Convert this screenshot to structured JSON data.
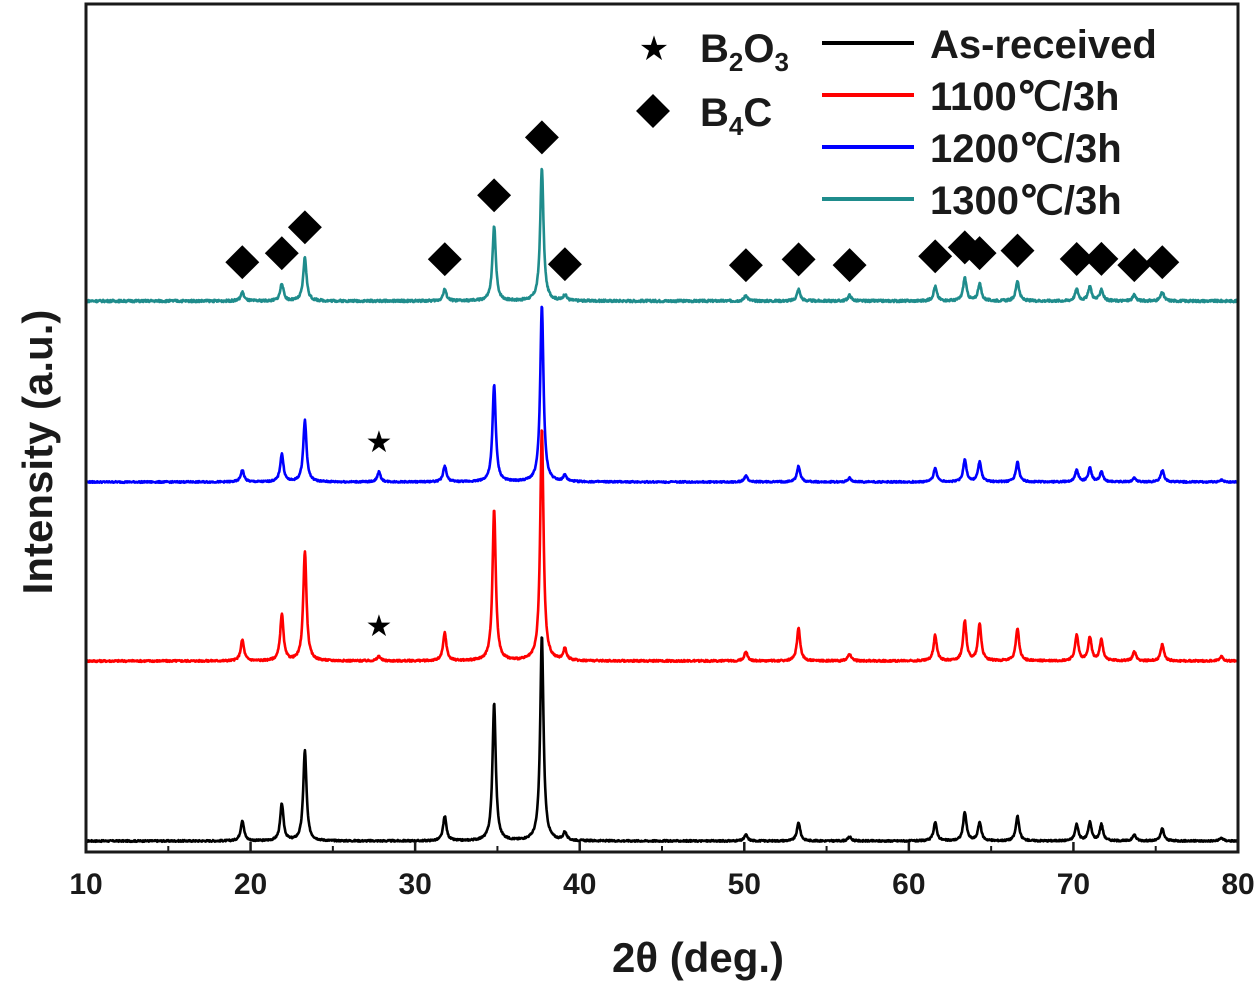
{
  "chart_data": {
    "type": "line",
    "title": "",
    "xlabel": "2θ (deg.)",
    "ylabel": "Intensity (a.u.)",
    "xlim": [
      10,
      80
    ],
    "xticks": [
      10,
      20,
      30,
      40,
      50,
      60,
      70,
      80
    ],
    "yticks_shown": false,
    "legend_placement": "top-right",
    "markers": [
      {
        "name": "B2O3",
        "symbol": "★",
        "label": {
          "base": "B",
          "sub1": "2",
          "mid": "O",
          "sub2": "3"
        }
      },
      {
        "name": "B4C",
        "symbol": "◆",
        "label": {
          "base": "B",
          "sub1": "4",
          "mid": "C",
          "sub2": ""
        }
      }
    ],
    "series": [
      {
        "name": "As-received",
        "color": "#000000",
        "offset": 0,
        "peaks": [
          [
            19.5,
            0.1
          ],
          [
            21.9,
            0.18
          ],
          [
            23.3,
            0.44
          ],
          [
            31.8,
            0.12
          ],
          [
            34.8,
            0.67
          ],
          [
            37.7,
            1.0
          ],
          [
            39.1,
            0.04
          ],
          [
            50.1,
            0.03
          ],
          [
            53.3,
            0.09
          ],
          [
            56.4,
            0.02
          ],
          [
            61.6,
            0.09
          ],
          [
            63.4,
            0.14
          ],
          [
            64.3,
            0.09
          ],
          [
            66.6,
            0.12
          ],
          [
            70.2,
            0.08
          ],
          [
            71.0,
            0.09
          ],
          [
            71.7,
            0.08
          ],
          [
            73.7,
            0.03
          ],
          [
            75.4,
            0.06
          ],
          [
            79.0,
            0.015
          ]
        ]
      },
      {
        "name": "1100℃/3h",
        "color": "#ff0000",
        "offset": 1,
        "peaks": [
          [
            19.5,
            0.09
          ],
          [
            21.9,
            0.2
          ],
          [
            23.3,
            0.47
          ],
          [
            27.8,
            0.02
          ],
          [
            31.8,
            0.12
          ],
          [
            34.8,
            0.65
          ],
          [
            37.7,
            1.0
          ],
          [
            39.1,
            0.05
          ],
          [
            50.1,
            0.04
          ],
          [
            53.3,
            0.14
          ],
          [
            56.4,
            0.03
          ],
          [
            61.6,
            0.11
          ],
          [
            63.4,
            0.17
          ],
          [
            64.3,
            0.16
          ],
          [
            66.6,
            0.14
          ],
          [
            70.2,
            0.11
          ],
          [
            71.0,
            0.1
          ],
          [
            71.7,
            0.09
          ],
          [
            73.7,
            0.04
          ],
          [
            75.4,
            0.07
          ],
          [
            79.0,
            0.02
          ]
        ]
      },
      {
        "name": "1200℃/3h",
        "color": "#0000ff",
        "offset": 2,
        "peaks": [
          [
            19.5,
            0.06
          ],
          [
            21.9,
            0.14
          ],
          [
            23.3,
            0.31
          ],
          [
            27.8,
            0.05
          ],
          [
            31.8,
            0.08
          ],
          [
            34.8,
            0.49
          ],
          [
            37.7,
            0.89
          ],
          [
            39.1,
            0.03
          ],
          [
            50.1,
            0.03
          ],
          [
            53.3,
            0.08
          ],
          [
            56.4,
            0.02
          ],
          [
            61.6,
            0.07
          ],
          [
            63.4,
            0.11
          ],
          [
            64.3,
            0.1
          ],
          [
            66.6,
            0.1
          ],
          [
            70.2,
            0.06
          ],
          [
            71.0,
            0.07
          ],
          [
            71.7,
            0.05
          ],
          [
            73.7,
            0.02
          ],
          [
            75.4,
            0.06
          ],
          [
            79.0,
            0.01
          ]
        ]
      },
      {
        "name": "1300℃/3h",
        "color": "#1f8c8c",
        "offset": 3,
        "peaks": [
          [
            19.5,
            0.03
          ],
          [
            21.9,
            0.06
          ],
          [
            23.3,
            0.15
          ],
          [
            31.8,
            0.04
          ],
          [
            34.8,
            0.26
          ],
          [
            37.7,
            0.46
          ],
          [
            39.1,
            0.02
          ],
          [
            50.1,
            0.02
          ],
          [
            53.3,
            0.04
          ],
          [
            56.4,
            0.02
          ],
          [
            61.6,
            0.05
          ],
          [
            63.4,
            0.08
          ],
          [
            64.3,
            0.06
          ],
          [
            66.6,
            0.07
          ],
          [
            70.2,
            0.04
          ],
          [
            71.0,
            0.05
          ],
          [
            71.7,
            0.04
          ],
          [
            73.7,
            0.02
          ],
          [
            75.4,
            0.03
          ]
        ]
      }
    ],
    "annotations": [
      {
        "symbol": "★",
        "x": 27.8,
        "series": "1100℃/3h"
      },
      {
        "symbol": "★",
        "x": 27.8,
        "series": "1200℃/3h"
      },
      {
        "symbol": "◆",
        "x": 19.5,
        "series": "1300℃/3h"
      },
      {
        "symbol": "◆",
        "x": 21.9,
        "series": "1300℃/3h"
      },
      {
        "symbol": "◆",
        "x": 23.3,
        "series": "1300℃/3h"
      },
      {
        "symbol": "◆",
        "x": 31.8,
        "series": "1300℃/3h"
      },
      {
        "symbol": "◆",
        "x": 34.8,
        "series": "1300℃/3h"
      },
      {
        "symbol": "◆",
        "x": 37.7,
        "series": "1300℃/3h"
      },
      {
        "symbol": "◆",
        "x": 39.1,
        "series": "1300℃/3h"
      },
      {
        "symbol": "◆",
        "x": 50.1,
        "series": "1300℃/3h"
      },
      {
        "symbol": "◆",
        "x": 53.3,
        "series": "1300℃/3h"
      },
      {
        "symbol": "◆",
        "x": 56.4,
        "series": "1300℃/3h"
      },
      {
        "symbol": "◆",
        "x": 61.6,
        "series": "1300℃/3h"
      },
      {
        "symbol": "◆",
        "x": 63.4,
        "series": "1300℃/3h"
      },
      {
        "symbol": "◆",
        "x": 64.3,
        "series": "1300℃/3h"
      },
      {
        "symbol": "◆",
        "x": 66.6,
        "series": "1300℃/3h"
      },
      {
        "symbol": "◆",
        "x": 70.2,
        "series": "1300℃/3h"
      },
      {
        "symbol": "◆",
        "x": 71.7,
        "series": "1300℃/3h"
      },
      {
        "symbol": "◆",
        "x": 73.7,
        "series": "1300℃/3h"
      },
      {
        "symbol": "◆",
        "x": 75.4,
        "series": "1300℃/3h"
      }
    ]
  }
}
